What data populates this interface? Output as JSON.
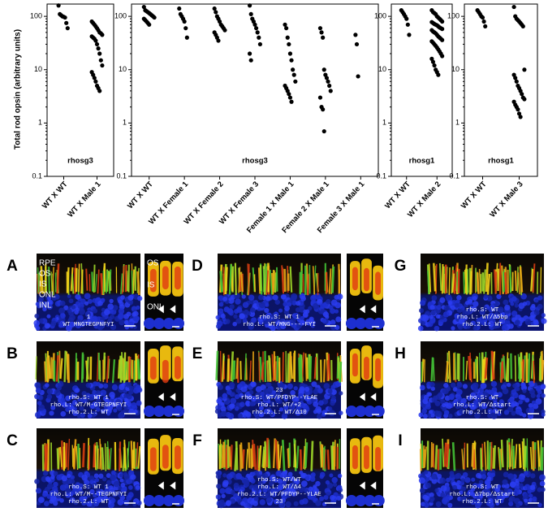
{
  "chart_data": [
    {
      "type": "scatter",
      "ylabel": "Total rod opsin (arbitrary units)",
      "label": "rhosg3",
      "log_scale": true,
      "color": "#000000",
      "categories": [
        "WT X WT",
        "WT X Male 1"
      ],
      "values": [
        [
          160,
          110,
          105,
          100,
          98,
          95,
          75,
          60
        ],
        [
          80,
          75,
          70,
          65,
          60,
          55,
          50,
          48,
          45,
          42,
          40,
          38,
          35,
          30,
          25,
          20,
          15,
          12,
          9,
          8,
          7,
          6,
          5,
          4.5,
          4
        ]
      ],
      "ylim": [
        0.1,
        170
      ],
      "yticks": [
        0.1,
        1,
        10,
        100
      ]
    },
    {
      "type": "scatter",
      "label": "rhosg3",
      "log_scale": true,
      "color": "#000000",
      "categories": [
        "WT X WT",
        "WT X Female 1",
        "WT X Female 2",
        "WT X Female 3",
        "Female 1 X Male 1",
        "Female 2 X Male 1",
        "Female 3 X Male 1"
      ],
      "values": [
        [
          150,
          130,
          125,
          120,
          115,
          110,
          105,
          100,
          95,
          90,
          85,
          80,
          75,
          70
        ],
        [
          140,
          110,
          100,
          90,
          80,
          60,
          40
        ],
        [
          140,
          120,
          100,
          90,
          80,
          70,
          65,
          60,
          55,
          50,
          45,
          40,
          35
        ],
        [
          160,
          110,
          90,
          80,
          70,
          60,
          50,
          40,
          30,
          20,
          15
        ],
        [
          70,
          60,
          40,
          30,
          20,
          15,
          10,
          8,
          6,
          5,
          4.5,
          4,
          3.5,
          3,
          2.5
        ],
        [
          60,
          50,
          40,
          10,
          8,
          7,
          6,
          5,
          4,
          3,
          2,
          1.8,
          0.7
        ],
        [
          45,
          30,
          7.5
        ]
      ],
      "ylim": [
        0.1,
        170
      ],
      "yticks": [
        0.1,
        1,
        10,
        100
      ]
    },
    {
      "type": "scatter",
      "label": "rhosg1",
      "log_scale": true,
      "color": "#000000",
      "categories": [
        "WT X WT",
        "WT X Male 2"
      ],
      "values": [
        [
          130,
          120,
          110,
          100,
          90,
          70,
          45
        ],
        [
          130,
          120,
          115,
          110,
          100,
          95,
          90,
          85,
          80,
          78,
          75,
          72,
          70,
          68,
          65,
          62,
          60,
          58,
          55,
          52,
          50,
          48,
          45,
          42,
          40,
          38,
          36,
          34,
          32,
          30,
          28,
          26,
          24,
          22,
          20,
          18,
          16,
          14,
          12,
          10,
          9,
          8
        ]
      ],
      "ylim": [
        0.1,
        170
      ],
      "yticks": [
        0.1,
        1,
        10,
        100
      ]
    },
    {
      "type": "scatter",
      "label": "rhosg1",
      "log_scale": true,
      "color": "#000000",
      "categories": [
        "WT X WT",
        "WT X Male 3"
      ],
      "values": [
        [
          130,
          120,
          110,
          100,
          95,
          80,
          65
        ],
        [
          150,
          100,
          90,
          85,
          80,
          75,
          70,
          65,
          10,
          8,
          7,
          6,
          5,
          4.5,
          4,
          3.5,
          3,
          2.8,
          2.5,
          2.2,
          2,
          1.8,
          1.5,
          1.3
        ]
      ],
      "ylim": [
        0.1,
        170
      ],
      "yticks": [
        0.1,
        1,
        10,
        100
      ]
    }
  ],
  "panels": [
    {
      "letter": "A",
      "layers": [
        "RPE",
        "OS",
        "IS",
        "ONL",
        "INL"
      ],
      "lines": [
        "1",
        "WT MNGTEGPNFYI"
      ],
      "inset_labels": [
        "OS",
        "IS",
        "ONL"
      ]
    },
    {
      "letter": "B",
      "lines": [
        "rho.S: WT 1",
        "rho.L: WT/M-GTEGPNFYI",
        "rho.2.L: WT"
      ]
    },
    {
      "letter": "C",
      "lines": [
        "rho.S: WT 1",
        "rho.L: WT/M--TEGPNFYI",
        "rho.2.L: WT"
      ]
    },
    {
      "letter": "D",
      "lines": [
        "rho.S: WT 1",
        "rho.L: WT/MNG----FYI"
      ]
    },
    {
      "letter": "E",
      "lines": [
        "23",
        "rho.S: WT/PFDYP--YLAE",
        "rho.L: WT/+2",
        "rho.2.L: WT/Δ10"
      ]
    },
    {
      "letter": "F",
      "lines": [
        "rho.S: WT/WT",
        "rho.L: WT/Δ4",
        "rho.2.L: WT/PFDYP--YLAE",
        "23"
      ]
    },
    {
      "letter": "G",
      "lines": [
        "rho.S: WT",
        "rho.L: WT/Δ5bp",
        "rho.2.L: WT"
      ]
    },
    {
      "letter": "H",
      "lines": [
        "rho.S: WT",
        "rho.L: WT/Δstart",
        "rho.2.L: WT"
      ]
    },
    {
      "letter": "I",
      "lines": [
        "rho.S: WT",
        "rho.L: Δ7bp/Δstart",
        "rho.2.L: WT"
      ]
    }
  ]
}
